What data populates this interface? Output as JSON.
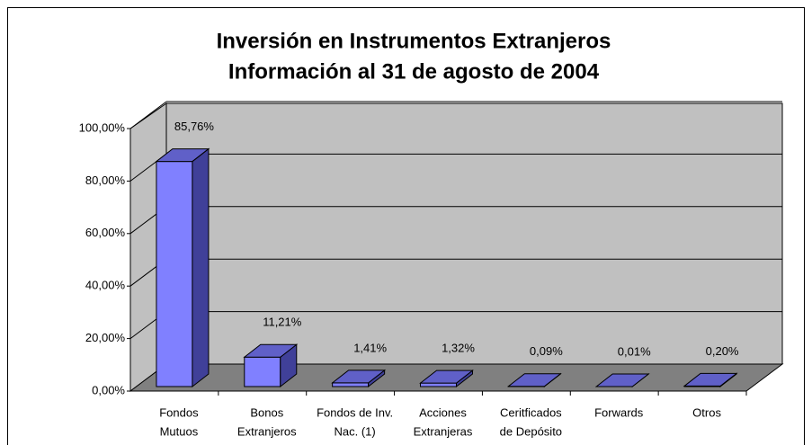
{
  "chart_data": {
    "type": "bar3d",
    "title": [
      "Inversión en Instrumentos Extranjeros",
      "Información al 31 de agosto de 2004"
    ],
    "categories": [
      [
        "Fondos",
        "Mutuos"
      ],
      [
        "Bonos",
        "Extranjeros"
      ],
      [
        "Fondos de Inv.",
        "Nac. (1)"
      ],
      [
        "Acciones",
        "Extranjeras"
      ],
      [
        "Ceritficados",
        "de Depósito"
      ],
      [
        "Forwards"
      ],
      [
        "Otros"
      ]
    ],
    "values": [
      85.76,
      11.21,
      1.41,
      1.32,
      0.09,
      0.01,
      0.2
    ],
    "value_labels": [
      "85,76%",
      "11,21%",
      "1,41%",
      "1,32%",
      "0,09%",
      "0,01%",
      "0,20%"
    ],
    "color": "#8080ff",
    "ylim": [
      0,
      100
    ],
    "yticks": [
      {
        "value": 0,
        "label": "0,00%"
      },
      {
        "value": 20,
        "label": "20,00%"
      },
      {
        "value": 40,
        "label": "40,00%"
      },
      {
        "value": 60,
        "label": "60,00%"
      },
      {
        "value": 80,
        "label": "80,00%"
      },
      {
        "value": 100,
        "label": "100,00%"
      }
    ],
    "grid": true
  }
}
